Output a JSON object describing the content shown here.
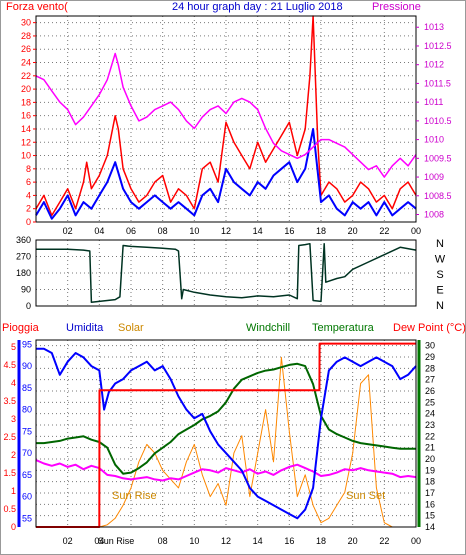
{
  "colors": {
    "wind": "#ff0000",
    "gust": "#0000ff",
    "pressure": "#ff00ff",
    "direction": "#003322",
    "rain": "#ff0000",
    "humidity": "#0000ff",
    "solar": "#ff8800",
    "windchill": "#006600",
    "temperature": "#008800",
    "dewpoint": "#ff00ff",
    "sunlabel": "#cc8800",
    "grid": "#7a7a7a",
    "axis_left": "#ff0000",
    "axis_right": "#cc00cc",
    "axis_blue": "#0000ff",
    "axis_green": "#007700"
  },
  "chart_data": [
    {
      "type": "line",
      "title": "24 hour graph day : 21 Luglio 2018",
      "left_label": "Forza vento(",
      "right_label": "Pressione",
      "x_ticks": [
        "02",
        "04",
        "06",
        "08",
        "10",
        "12",
        "14",
        "16",
        "18",
        "20",
        "22",
        "00"
      ],
      "y_left_ticks": [
        "0",
        "2",
        "4",
        "6",
        "8",
        "10",
        "12",
        "14",
        "16",
        "18",
        "20",
        "22",
        "24",
        "26",
        "28",
        "30"
      ],
      "y_left_range": [
        0,
        31
      ],
      "y_right_ticks": [
        "1008",
        "1008.5",
        "1009",
        "1009.5",
        "1010",
        "1010.5",
        "1011",
        "1011.5",
        "1012",
        "1012.5",
        "1013"
      ],
      "y_right_range": [
        1007.8,
        1013.3
      ],
      "x_range_hours": [
        0,
        24
      ],
      "grid": true,
      "series": [
        {
          "key": "wind",
          "axis": "left",
          "x": [
            0,
            0.5,
            1,
            1.5,
            2,
            2.5,
            3,
            3.2,
            3.5,
            4,
            4.5,
            5,
            5.2,
            5.5,
            6,
            6.5,
            7,
            7.5,
            8,
            8.5,
            9,
            9.5,
            10,
            10.5,
            11,
            11.5,
            12,
            12.5,
            13,
            13.5,
            14,
            14.5,
            15,
            15.5,
            16,
            16.5,
            17,
            17.3,
            17.5,
            17.8,
            18,
            18.5,
            19,
            19.5,
            20,
            20.5,
            21,
            21.5,
            22,
            22.5,
            23,
            23.5,
            24
          ],
          "values": [
            2,
            4,
            1,
            3,
            5,
            2,
            6,
            9,
            5,
            7,
            10,
            16,
            14,
            8,
            5,
            3,
            4,
            6,
            7,
            3,
            5,
            4,
            2,
            8,
            9,
            6,
            15,
            12,
            10,
            8,
            12,
            9,
            11,
            13,
            15,
            10,
            14,
            22,
            31,
            12,
            4,
            6,
            5,
            3,
            4,
            6,
            5,
            3,
            4,
            2,
            5,
            6,
            4
          ]
        },
        {
          "key": "gust",
          "axis": "left",
          "x": [
            0,
            0.5,
            1,
            1.5,
            2,
            2.5,
            3,
            3.5,
            4,
            4.5,
            5,
            5.5,
            6,
            6.5,
            7,
            7.5,
            8,
            8.5,
            9,
            9.5,
            10,
            10.5,
            11,
            11.5,
            12,
            12.5,
            13,
            13.5,
            14,
            14.5,
            15,
            15.5,
            16,
            16.5,
            17,
            17.5,
            18,
            18.5,
            19,
            19.5,
            20,
            20.5,
            21,
            21.5,
            22,
            22.5,
            23,
            23.5,
            24
          ],
          "values": [
            1,
            3,
            0.5,
            2,
            4,
            1,
            3,
            2,
            4,
            6,
            9,
            5,
            3,
            2,
            3,
            4,
            3,
            2,
            3,
            2,
            1,
            4,
            5,
            3,
            8,
            6,
            5,
            4,
            6,
            5,
            7,
            8,
            9,
            6,
            8,
            14,
            3,
            4,
            2,
            1,
            3,
            2,
            3,
            1,
            3,
            1,
            2,
            3,
            2
          ]
        },
        {
          "key": "pressure",
          "axis": "right",
          "x": [
            0,
            0.5,
            1,
            1.5,
            2,
            2.5,
            3,
            3.5,
            4,
            4.5,
            5,
            5.2,
            5.5,
            6,
            6.5,
            7,
            7.5,
            8,
            8.5,
            9,
            9.5,
            10,
            10.5,
            11,
            11.5,
            12,
            12.5,
            13,
            13.5,
            14,
            14.5,
            15,
            15.5,
            16,
            16.5,
            17,
            17.5,
            18,
            18.5,
            19,
            19.5,
            20,
            20.5,
            21,
            21.5,
            22,
            22.5,
            23,
            23.5,
            24
          ],
          "values": [
            1011.7,
            1011.6,
            1011.3,
            1011.0,
            1010.8,
            1010.4,
            1010.6,
            1010.9,
            1011.2,
            1011.6,
            1012.3,
            1012.0,
            1011.4,
            1010.9,
            1010.5,
            1010.6,
            1010.8,
            1010.9,
            1011.0,
            1010.8,
            1010.5,
            1010.3,
            1010.6,
            1010.8,
            1010.9,
            1010.7,
            1011.0,
            1011.1,
            1011.0,
            1010.8,
            1010.3,
            1009.9,
            1009.7,
            1009.6,
            1009.5,
            1009.6,
            1009.8,
            1010.0,
            1010.0,
            1009.9,
            1009.8,
            1009.6,
            1009.4,
            1009.2,
            1009.3,
            1009.0,
            1009.3,
            1009.5,
            1009.3,
            1009.6
          ]
        }
      ]
    },
    {
      "type": "line",
      "right_letters": [
        "N",
        "W",
        "S",
        "E",
        "N"
      ],
      "y_ticks": [
        "0",
        "90",
        "180",
        "270",
        "360"
      ],
      "y_range": [
        0,
        360
      ],
      "x_range_hours": [
        0,
        24
      ],
      "grid": true,
      "series": [
        {
          "key": "direction",
          "x": [
            0,
            1,
            2,
            3,
            3.4,
            3.5,
            4,
            4.5,
            5,
            5.3,
            5.5,
            6,
            7,
            8,
            8.8,
            9,
            9.2,
            9.3,
            10,
            11,
            12,
            13,
            14,
            15,
            16,
            16.5,
            16.6,
            17,
            17.3,
            17.5,
            18,
            18.2,
            18.3,
            19,
            19.5,
            20,
            21,
            22,
            23,
            24
          ],
          "values": [
            310,
            310,
            310,
            305,
            300,
            20,
            25,
            30,
            35,
            50,
            330,
            325,
            320,
            315,
            310,
            300,
            40,
            90,
            75,
            60,
            50,
            45,
            55,
            50,
            60,
            40,
            330,
            335,
            340,
            30,
            25,
            340,
            130,
            150,
            160,
            200,
            240,
            280,
            320,
            305
          ]
        }
      ]
    },
    {
      "type": "line",
      "labels": {
        "pioggia": "Pioggia",
        "umidita": "Umidita",
        "solar": "Solar",
        "windchill": "Windchill",
        "temperatura": "Temperatura",
        "dewpoint": "Dew Point (°C)"
      },
      "annotations": {
        "sun_rise": "Sun Rise",
        "sun_set": "Sun Set"
      },
      "x_ticks": [
        "02",
        "04",
        "Sun Rise",
        "06",
        "08",
        "10",
        "12",
        "14",
        "16",
        "18",
        "20",
        "22",
        "00"
      ],
      "y_rain_ticks": [
        "0",
        "0.5",
        "1",
        "1.5",
        "2",
        "2.5",
        "3",
        "3.5",
        "4",
        "4.5",
        "5"
      ],
      "y_rain_range": [
        0,
        5.2
      ],
      "y_hum_ticks": [
        "55",
        "60",
        "65",
        "70",
        "75",
        "80",
        "85",
        "90",
        "95"
      ],
      "y_hum_range": [
        53,
        96
      ],
      "y_temp_ticks": [
        "14",
        "15",
        "16",
        "17",
        "18",
        "19",
        "20",
        "21",
        "22",
        "23",
        "24",
        "25",
        "26",
        "27",
        "28",
        "29",
        "30"
      ],
      "y_temp_range": [
        14,
        30.5
      ],
      "x_range_hours": [
        0,
        24
      ],
      "grid": true,
      "series": [
        {
          "key": "rain",
          "axis": "rain",
          "x": [
            0,
            4.0,
            4.01,
            4.5,
            17.9,
            17.91,
            24
          ],
          "values": [
            0,
            0,
            3.8,
            3.8,
            3.8,
            5.1,
            5.1
          ]
        },
        {
          "key": "humidity",
          "axis": "hum",
          "x": [
            0,
            0.5,
            1,
            1.5,
            2,
            2.5,
            3,
            3.5,
            4,
            4.3,
            4.6,
            5,
            5.5,
            6,
            6.5,
            7,
            7.5,
            8,
            8.5,
            9,
            9.5,
            10,
            10.5,
            11,
            11.5,
            12,
            12.5,
            13,
            13.5,
            14,
            14.5,
            15,
            15.5,
            16,
            16.5,
            17,
            17.5,
            18,
            18.5,
            19,
            19.5,
            20,
            20.5,
            21,
            21.5,
            22,
            22.5,
            23,
            23.5,
            24
          ],
          "values": [
            94,
            94,
            93,
            88,
            91,
            93,
            92,
            90,
            89,
            80,
            84,
            86,
            87,
            89,
            90,
            91,
            89,
            90,
            87,
            83,
            80,
            78,
            79,
            75,
            72,
            70,
            68,
            66,
            62,
            60,
            59,
            58,
            57,
            56,
            55,
            57,
            62,
            78,
            89,
            91,
            92,
            91,
            90,
            91,
            92,
            91,
            90,
            87,
            88,
            90
          ]
        },
        {
          "key": "solar",
          "axis": "hum",
          "x": [
            0,
            4,
            4.5,
            5,
            5.5,
            6,
            6.5,
            7,
            7.5,
            8,
            8.5,
            9,
            9.5,
            10,
            10.5,
            11,
            11.5,
            12,
            12.5,
            13,
            13.5,
            14,
            14.5,
            15,
            15.5,
            16,
            16.5,
            17,
            17.5,
            18,
            18.5,
            19,
            19.5,
            20,
            20.5,
            21,
            21.5,
            22,
            22.5,
            23,
            23.5,
            24
          ],
          "values": [
            53,
            53,
            53.5,
            55,
            58,
            62,
            68,
            72,
            70,
            66,
            64,
            62,
            68,
            72,
            65,
            60,
            63,
            58,
            70,
            74,
            60,
            70,
            80,
            68,
            92,
            75,
            60,
            65,
            58,
            54,
            55,
            58,
            61,
            70,
            86,
            88,
            62,
            54,
            53,
            53,
            53,
            53
          ]
        },
        {
          "key": "windchill",
          "axis": "temp",
          "x": [
            0,
            0.5,
            1,
            1.5,
            2,
            2.5,
            3,
            3.5,
            4,
            4.5,
            5,
            5.5,
            6,
            6.5,
            7,
            7.5,
            8,
            8.5,
            9,
            9.5,
            10,
            10.5,
            11,
            11.5,
            12,
            12.5,
            13,
            13.5,
            14,
            14.5,
            15,
            15.5,
            16,
            16.5,
            17,
            17.5,
            18,
            18.5,
            19,
            19.5,
            20,
            20.5,
            21,
            21.5,
            22,
            22.5,
            23,
            23.5,
            24
          ],
          "values": [
            21.4,
            21.4,
            21.5,
            21.6,
            21.8,
            21.9,
            22.0,
            21.7,
            21.5,
            21.0,
            19.5,
            18.7,
            18.8,
            19.2,
            19.7,
            20.5,
            21.0,
            21.5,
            22.2,
            22.6,
            23.0,
            23.5,
            23.8,
            24.2,
            25.0,
            26.2,
            27.0,
            27.3,
            27.6,
            27.8,
            27.9,
            28.1,
            28.3,
            28.4,
            28.2,
            26.6,
            23.8,
            22.6,
            22.2,
            21.9,
            21.6,
            21.4,
            21.3,
            21.2,
            21.1,
            21.0,
            20.9,
            20.9,
            20.9
          ]
        },
        {
          "key": "dewpoint",
          "axis": "temp",
          "x": [
            0,
            0.5,
            1,
            1.5,
            2,
            2.5,
            3,
            3.5,
            4,
            4.5,
            5,
            5.5,
            6,
            6.5,
            7,
            7.5,
            8,
            8.5,
            9,
            9.5,
            10,
            10.5,
            11,
            11.5,
            12,
            12.5,
            13,
            13.5,
            14,
            14.5,
            15,
            15.5,
            16,
            16.5,
            17,
            17.5,
            18,
            18.5,
            19,
            19.5,
            20,
            20.5,
            21,
            21.5,
            22,
            22.5,
            23,
            23.5,
            24
          ],
          "values": [
            19.9,
            19.6,
            19.4,
            19.6,
            19.3,
            19.5,
            19.1,
            19.4,
            19.2,
            18.6,
            18.5,
            18.3,
            18.2,
            18.3,
            18.4,
            18.2,
            18.1,
            18.3,
            18.2,
            18.5,
            18.8,
            19.1,
            19.0,
            18.8,
            19.2,
            19.0,
            18.8,
            19.1,
            18.7,
            18.9,
            18.6,
            19.0,
            19.3,
            19.5,
            19.2,
            18.9,
            18.5,
            18.6,
            18.8,
            19.1,
            19.0,
            19.2,
            19.0,
            18.9,
            18.8,
            18.7,
            18.4,
            18.5,
            18.4
          ]
        }
      ]
    }
  ]
}
